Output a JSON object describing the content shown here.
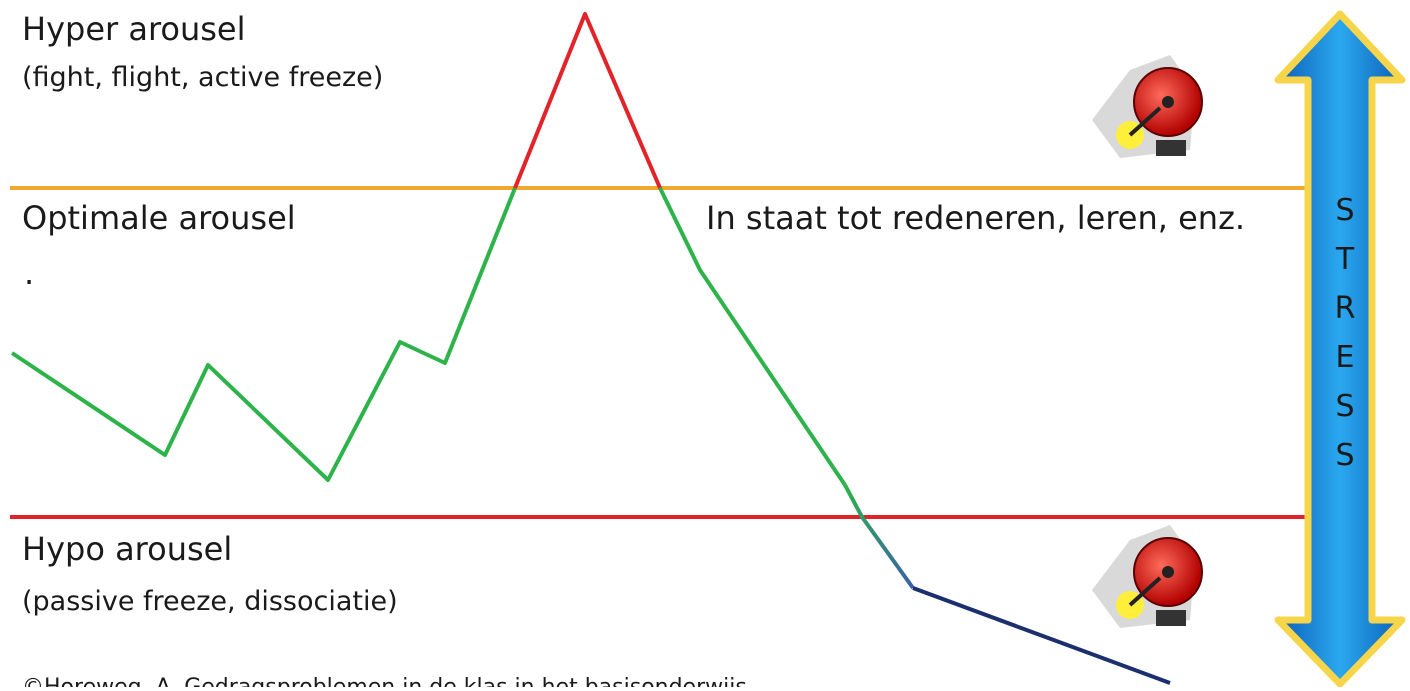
{
  "zones": {
    "hyper": {
      "title": "Hyper arousel",
      "subtitle": "(fight, flight, active freeze)"
    },
    "optimal": {
      "title": "Optimale arousel",
      "note": ".",
      "description": "In staat tot redeneren, leren, enz."
    },
    "hypo": {
      "title": "Hypo arousel",
      "subtitle": "(passive freeze, dissociatie)"
    }
  },
  "arrow": {
    "letters": [
      "S",
      "T",
      "R",
      "E",
      "S",
      "S"
    ]
  },
  "footer": {
    "credit": "©Horeweg, A. Gedragsproblemen in de klas in het basisonderwijs."
  }
}
